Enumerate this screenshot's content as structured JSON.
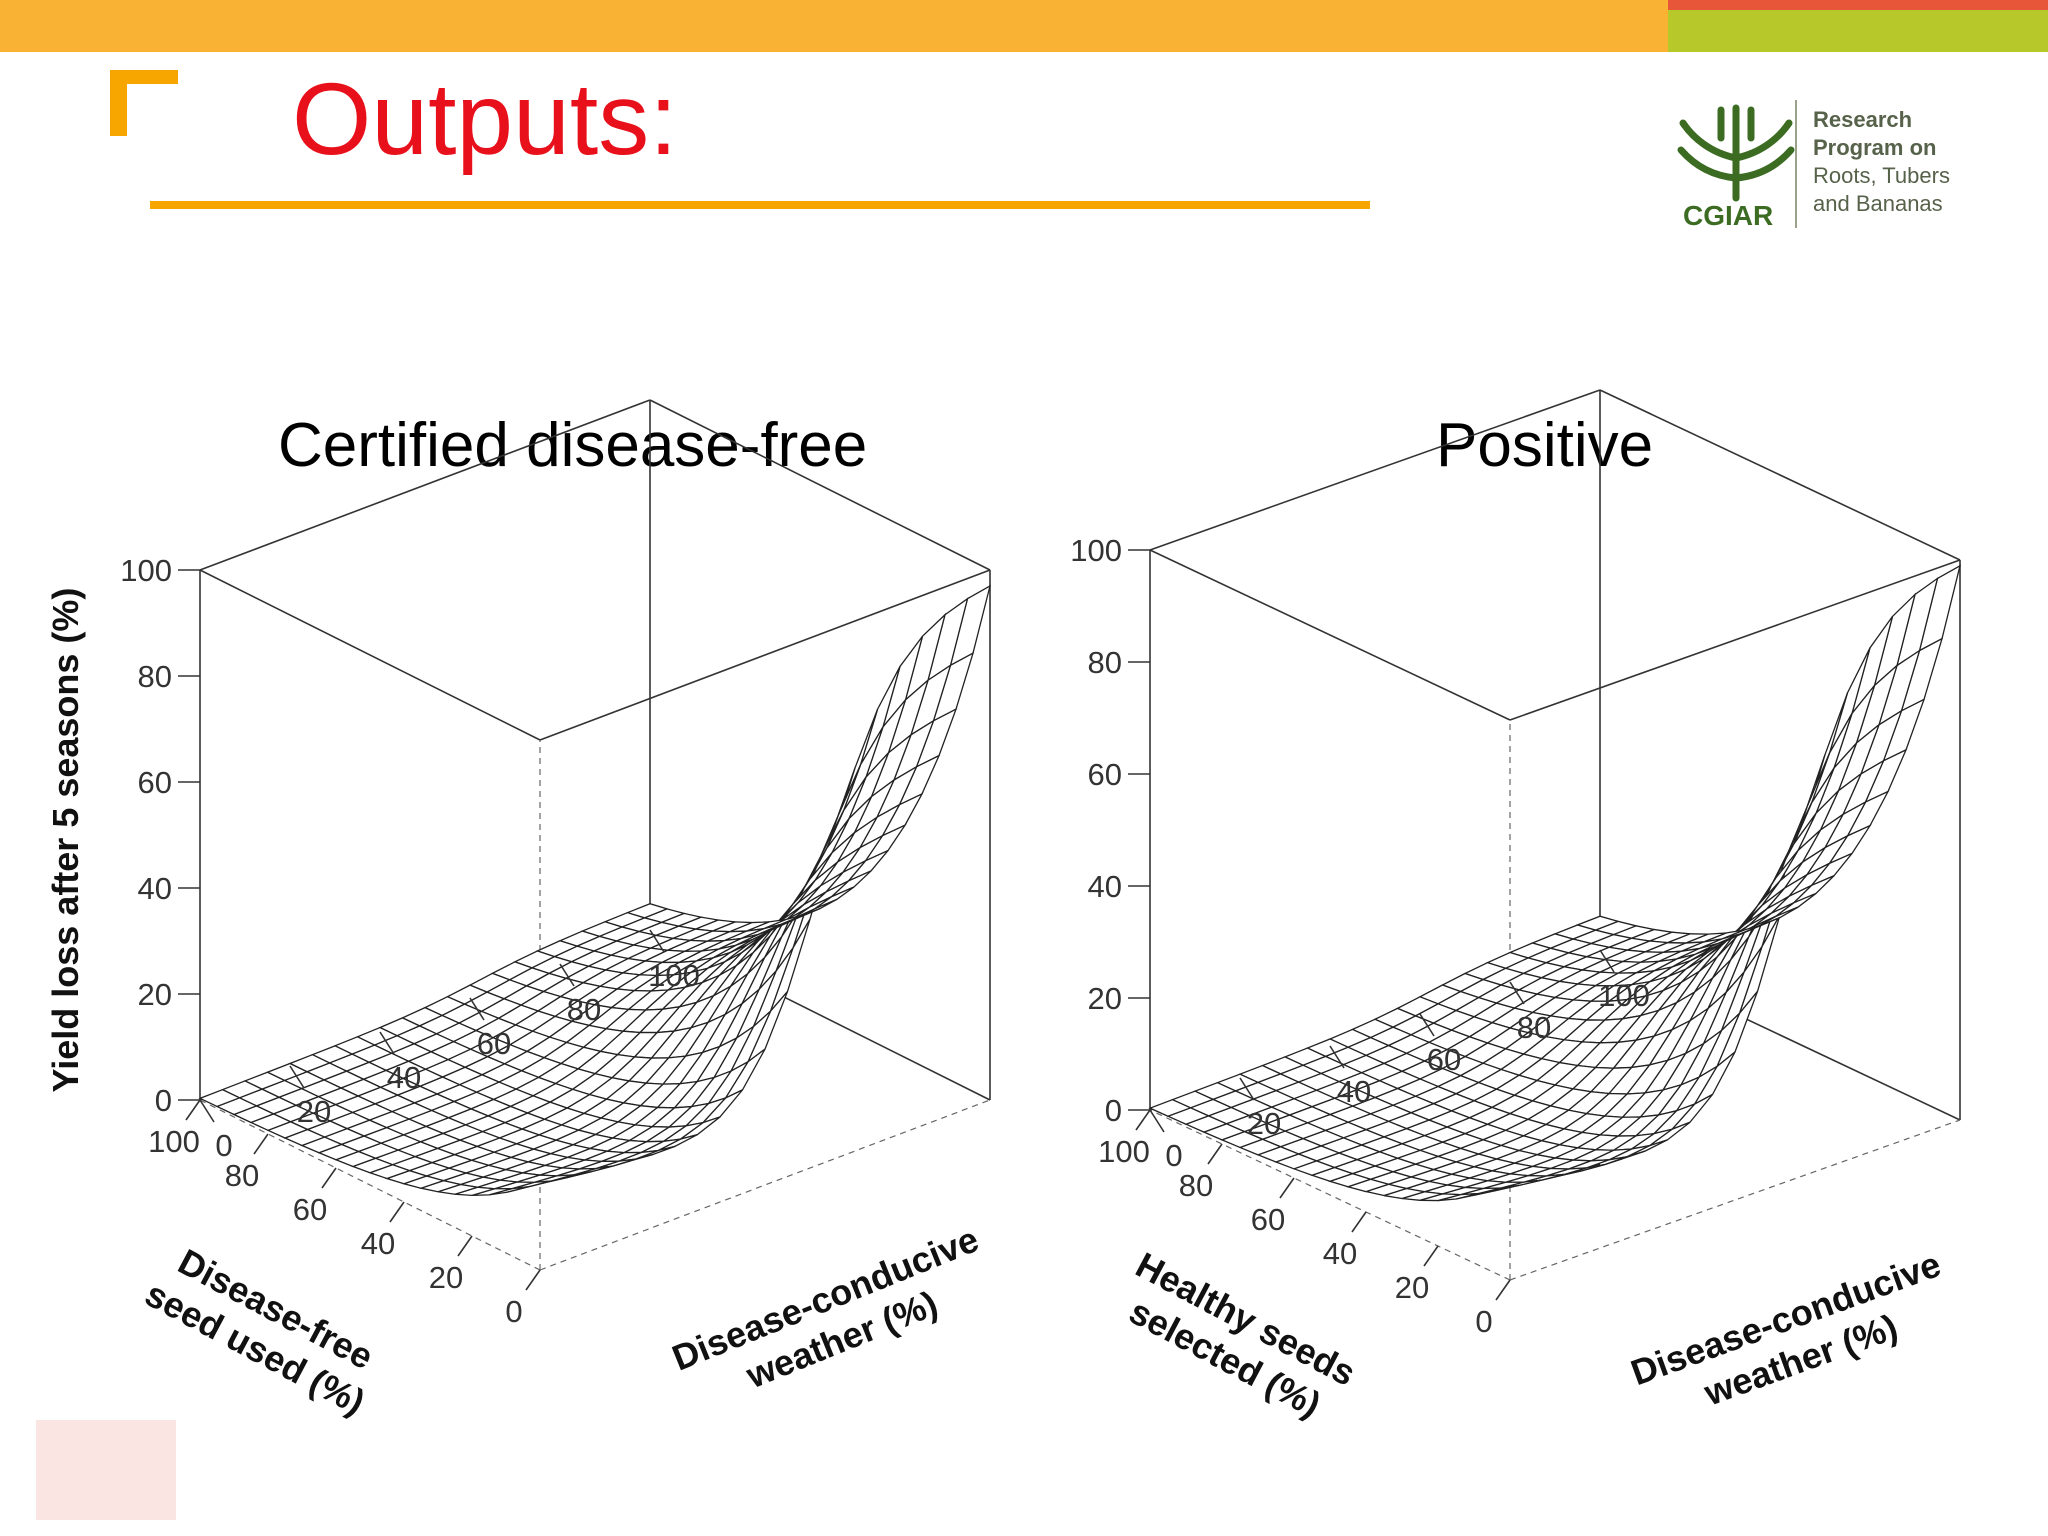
{
  "slide": {
    "title": "Outputs:",
    "logo": {
      "line1": "Research",
      "line2": "Program on",
      "line3": "Roots, Tubers",
      "line4": "and Bananas",
      "acronym": "CGIAR"
    },
    "colors": {
      "title": "#e8101b",
      "accent_orange": "#f7a600",
      "accent_red": "#e8563a",
      "accent_green": "#b7c82a",
      "logo_green": "#3c6b22"
    }
  },
  "chart_data": [
    {
      "type": "surface",
      "title": "Certified disease-free",
      "zlabel": "Yield loss after 5 seasons (%)",
      "xlabel": "Disease-free seed used (%)",
      "ylabel": "Disease-conducive weather (%)",
      "x_ticks": [
        "0",
        "20",
        "40",
        "60",
        "80",
        "100"
      ],
      "y_ticks": [
        "0",
        "20",
        "40",
        "60",
        "80",
        "100"
      ],
      "z_ticks": [
        "0",
        "20",
        "40",
        "60",
        "80",
        "100"
      ],
      "xlim": [
        0,
        100
      ],
      "ylim": [
        0,
        100
      ],
      "zlim": [
        0,
        100
      ],
      "grid_steps": 20,
      "surface": {
        "peak_percent": 98,
        "peak_at": {
          "x": 0,
          "y": 100
        },
        "corner_x0_y0": 17,
        "corner_x100_y100": 1,
        "corner_x100_y0": 0
      }
    },
    {
      "type": "surface",
      "title": "Positive",
      "xlabel": "Healthy seeds selected (%)",
      "ylabel": "Disease-conducive weather (%)",
      "x_ticks": [
        "0",
        "20",
        "40",
        "60",
        "80",
        "100"
      ],
      "y_ticks": [
        "0",
        "20",
        "40",
        "60",
        "80",
        "100"
      ],
      "z_ticks": [
        "0",
        "20",
        "40",
        "60",
        "80",
        "100"
      ],
      "xlim": [
        0,
        100
      ],
      "ylim": [
        0,
        100
      ],
      "zlim": [
        0,
        100
      ],
      "grid_steps": 20,
      "surface": {
        "peak_percent": 100,
        "peak_at": {
          "x": 0,
          "y": 100
        },
        "corner_x0_y0": 18,
        "corner_x100_y100": 2,
        "corner_x100_y0": 0
      }
    }
  ]
}
